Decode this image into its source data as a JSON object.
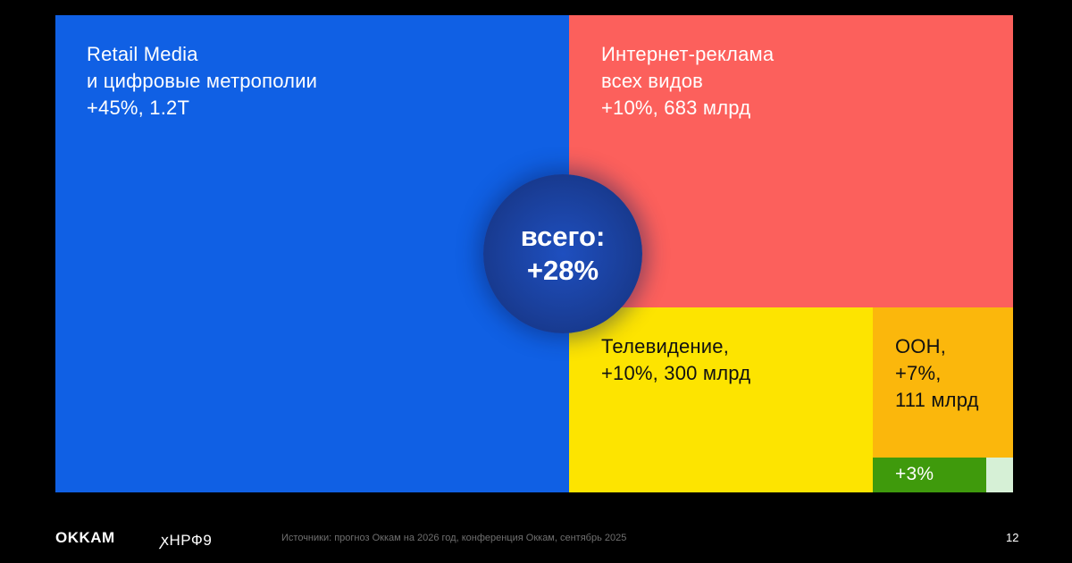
{
  "chart_data": {
    "type": "treemap",
    "title": "",
    "total": {
      "label": "всего:",
      "value": "+28%"
    },
    "items": [
      {
        "id": "retail",
        "lines": [
          "Retail Media",
          "и цифровые метрополии",
          "+45%, 1.2T"
        ],
        "growth_pct": 45,
        "color": "#1060e4"
      },
      {
        "id": "internet",
        "lines": [
          "Интернет-реклама",
          "всех видов",
          "+10%, 683 млрд"
        ],
        "growth_pct": 10,
        "color": "#fc605c"
      },
      {
        "id": "tv",
        "lines": [
          "Телевидение,",
          "+10%, 300 млрд"
        ],
        "growth_pct": 10,
        "color": "#fde400"
      },
      {
        "id": "ooh",
        "lines": [
          "OOH,",
          "+7%,",
          "111 млрд"
        ],
        "growth_pct": 7,
        "color": "#fbb70c"
      },
      {
        "id": "small",
        "lines": [
          "+3%"
        ],
        "growth_pct": 3,
        "color": "#3f9a0c"
      },
      {
        "id": "other",
        "lines": [],
        "color": "#d6f0d6"
      }
    ]
  },
  "footer": {
    "brand": "OKKAM",
    "partner": "ꭗНРФ9",
    "source": "Источники:  прогноз Оккам на 2026 год, конференция Оккам, сентябрь 2025",
    "page_number": "12"
  }
}
